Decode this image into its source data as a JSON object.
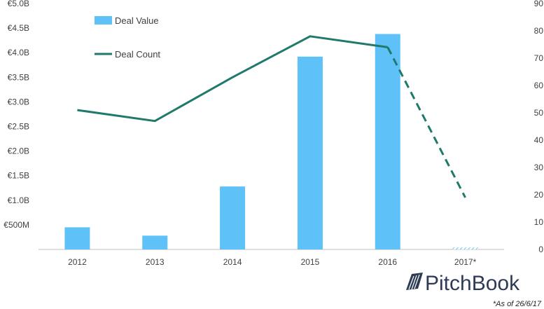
{
  "chart_data": {
    "type": "bar",
    "categories": [
      "2012",
      "2013",
      "2014",
      "2015",
      "2016",
      "2017*"
    ],
    "series": [
      {
        "name": "Deal Value",
        "kind": "bar",
        "axis": "left",
        "values": [
          0.45,
          0.28,
          1.28,
          3.92,
          4.38,
          0.04
        ],
        "colors": [
          "#5ec1f7",
          "#5ec1f7",
          "#5ec1f7",
          "#5ec1f7",
          "#5ec1f7",
          "hatched"
        ]
      },
      {
        "name": "Deal Count",
        "kind": "line",
        "axis": "right",
        "values": [
          51,
          47,
          63,
          78,
          74,
          19
        ],
        "dashed_from_index": 4,
        "color": "#1f7a6b"
      }
    ],
    "y_left": {
      "min": 0,
      "max": 5.0,
      "ticks": [
        0.5,
        1.0,
        1.5,
        2.0,
        2.5,
        3.0,
        3.5,
        4.0,
        4.5,
        5.0
      ],
      "tick_labels": [
        "€500M",
        "€1.0B",
        "€1.5B",
        "€2.0B",
        "€2.5B",
        "€3.0B",
        "€3.5B",
        "€4.0B",
        "€4.5B",
        "€5.0B"
      ]
    },
    "y_right": {
      "min": 0,
      "max": 90,
      "ticks": [
        0,
        10,
        20,
        30,
        40,
        50,
        60,
        70,
        80,
        90
      ],
      "tick_labels": [
        "0",
        "10",
        "20",
        "30",
        "40",
        "50",
        "60",
        "70",
        "80",
        "90"
      ]
    },
    "legend_position": "top-left",
    "grid": false
  },
  "branding": {
    "logo_text": "PitchBook",
    "logo_color": "#2e3b55"
  },
  "footnote": "*As of 26/6/17"
}
